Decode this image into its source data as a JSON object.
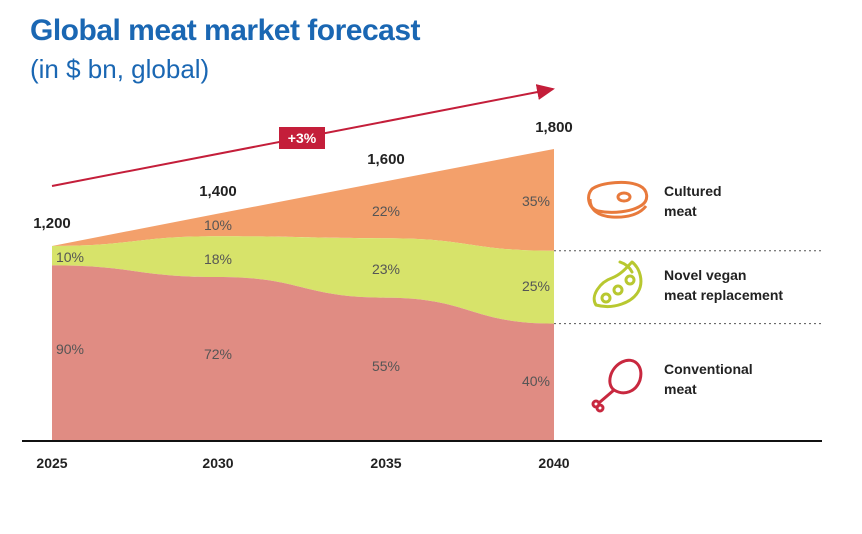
{
  "title": "Global meat market forecast",
  "subtitle": "(in $ bn, global)",
  "growth_label": "+3%",
  "legend": [
    {
      "line1": "Cultured",
      "line2": "meat",
      "icon": "steak-icon"
    },
    {
      "line1": "Novel vegan",
      "line2": "meat replacement",
      "icon": "soybean-pod-icon"
    },
    {
      "line1": "Conventional",
      "line2": "meat",
      "icon": "chicken-leg-icon"
    }
  ],
  "colors": {
    "conventional": "#e08c83",
    "vegan": "#d7e36a",
    "cultured": "#f3a06b",
    "title": "#1a67b3",
    "arrow": "#c41e3a",
    "icon_cultured": "#e87a3c",
    "icon_vegan": "#b8c830",
    "icon_conventional": "#c8283f"
  },
  "chart_data": {
    "type": "area",
    "stacked": "percent",
    "categories": [
      "2025",
      "2030",
      "2035",
      "2040"
    ],
    "totals": [
      1200,
      1400,
      1600,
      1800
    ],
    "total_labels": [
      "1,200",
      "1,400",
      "1,600",
      "1,800"
    ],
    "series": [
      {
        "name": "Conventional meat",
        "values": [
          90,
          72,
          55,
          40
        ],
        "labels": [
          "90%",
          "72%",
          "55%",
          "40%"
        ]
      },
      {
        "name": "Novel vegan meat replacement",
        "values": [
          10,
          18,
          23,
          25
        ],
        "labels": [
          "10%",
          "18%",
          "23%",
          "25%"
        ]
      },
      {
        "name": "Cultured meat",
        "values": [
          0,
          10,
          22,
          35
        ],
        "labels": [
          "",
          "10%",
          "22%",
          "35%"
        ]
      }
    ],
    "growth_annotation": "+3%",
    "legend_position": "right",
    "grid": false
  }
}
